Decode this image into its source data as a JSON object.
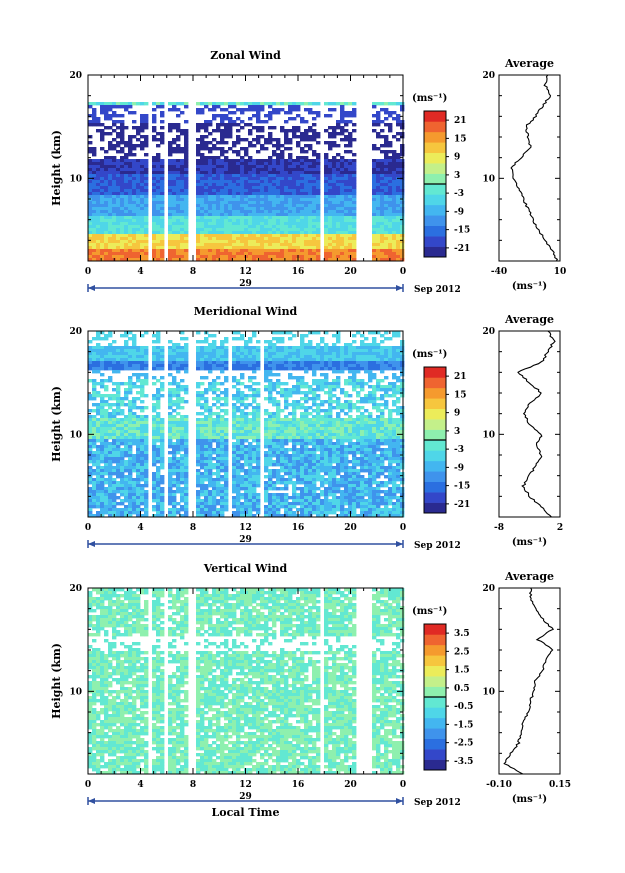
{
  "colors": {
    "scale": [
      "#2a2a90",
      "#3347c9",
      "#2b6fe0",
      "#3f93ec",
      "#43b6f0",
      "#4fd6e8",
      "#62e8d2",
      "#8ef0ae",
      "#c4f08a",
      "#ecec5a",
      "#f6c63e",
      "#f59a2e",
      "#ef6430",
      "#e02a24"
    ],
    "frame": "#000000"
  },
  "chart_data": [
    {
      "type": "heatmap",
      "id": "zonal",
      "title": "Zonal Wind",
      "ylabel": "Height (km)",
      "xlabel": "",
      "xticks": [
        "0",
        "4",
        "8",
        "12",
        "16",
        "20",
        "0"
      ],
      "date_label": "29",
      "date_suffix": "Sep 2012",
      "ylim": [
        2,
        20
      ],
      "ytick_labels": [
        "10",
        "20"
      ],
      "gaps_hours": [
        [
          4.5,
          4.8
        ],
        [
          5.8,
          6.1
        ],
        [
          7.7,
          8.1
        ],
        [
          17.7,
          18.0
        ],
        [
          20.3,
          21.5
        ],
        [
          23.1,
          23.3
        ]
      ],
      "colorbar": {
        "unit": "(ms⁻¹)",
        "ticks": [
          "21",
          "15",
          "9",
          "3",
          "-3",
          "-9",
          "-15",
          "-21"
        ]
      },
      "profile": {
        "title": "Average",
        "xlabel": "(ms⁻¹)",
        "xlim": [
          -40,
          10
        ],
        "xtick_labels": [
          "-40",
          "10"
        ],
        "heights": [
          2,
          3,
          4,
          5,
          6,
          7,
          8,
          9,
          10,
          11,
          12,
          13,
          14,
          15,
          16,
          17,
          18,
          19,
          20
        ],
        "values": [
          8,
          4,
          -2,
          -8,
          -12,
          -16,
          -20,
          -24,
          -28,
          -30,
          -22,
          -14,
          -16,
          -18,
          -10,
          -4,
          2,
          -2,
          0
        ]
      }
    },
    {
      "type": "heatmap",
      "id": "meridional",
      "title": "Meridional Wind",
      "ylabel": "Height (km)",
      "xlabel": "",
      "xticks": [
        "0",
        "4",
        "8",
        "12",
        "16",
        "20",
        "0"
      ],
      "date_label": "29",
      "date_suffix": "Sep 2012",
      "ylim": [
        2,
        20
      ],
      "ytick_labels": [
        "10",
        "20"
      ],
      "gaps_hours": [
        [
          4.5,
          4.8
        ],
        [
          5.8,
          6.1
        ],
        [
          7.7,
          8.1
        ],
        [
          10.8,
          11.0
        ],
        [
          12.1,
          12.3
        ],
        [
          13.2,
          13.5
        ],
        [
          23.1,
          23.3
        ]
      ],
      "colorbar": {
        "unit": "(ms⁻¹)",
        "ticks": [
          "21",
          "15",
          "9",
          "3",
          "-3",
          "-9",
          "-15",
          "-21"
        ]
      },
      "profile": {
        "title": "Average",
        "xlabel": "(ms⁻¹)",
        "xlim": [
          -8,
          2
        ],
        "xtick_labels": [
          "-8",
          "2"
        ],
        "heights": [
          2,
          3,
          4,
          5,
          6,
          7,
          8,
          9,
          10,
          11,
          12,
          13,
          14,
          15,
          16,
          17,
          18,
          19,
          20
        ],
        "values": [
          0.5,
          -1,
          -3,
          -4,
          -3,
          -2,
          -1,
          -2,
          -1,
          -3,
          -4,
          -3,
          -1,
          -3,
          -5,
          -1,
          0,
          1,
          0
        ]
      }
    },
    {
      "type": "heatmap",
      "id": "vertical",
      "title": "Vertical Wind",
      "ylabel": "Height (km)",
      "xlabel": "Local Time",
      "xticks": [
        "0",
        "4",
        "8",
        "12",
        "16",
        "20",
        "0"
      ],
      "date_label": "29",
      "date_suffix": "Sep 2012",
      "ylim": [
        2,
        20
      ],
      "ytick_labels": [
        "10",
        "20"
      ],
      "gaps_hours": [
        [
          4.5,
          4.8
        ],
        [
          5.8,
          6.1
        ],
        [
          7.7,
          8.1
        ],
        [
          17.7,
          18.0
        ],
        [
          20.3,
          21.5
        ],
        [
          23.1,
          23.3
        ]
      ],
      "colorbar": {
        "unit": "(ms⁻¹)",
        "ticks": [
          "3.5",
          "2.5",
          "1.5",
          "0.5",
          "-0.5",
          "-1.5",
          "-2.5",
          "-3.5"
        ]
      },
      "profile": {
        "title": "Average",
        "xlabel": "(ms⁻¹)",
        "xlim": [
          -0.1,
          0.15
        ],
        "xtick_labels": [
          "-0.10",
          "0.15"
        ],
        "heights": [
          2,
          3,
          4,
          5,
          6,
          7,
          8,
          9,
          10,
          11,
          12,
          13,
          14,
          15,
          16,
          17,
          18,
          19,
          20
        ],
        "values": [
          0.0,
          -0.08,
          -0.05,
          -0.02,
          -0.01,
          0.0,
          0.02,
          0.03,
          0.04,
          0.05,
          0.08,
          0.09,
          0.12,
          0.06,
          0.12,
          0.08,
          0.05,
          0.03,
          0.03
        ]
      }
    }
  ]
}
